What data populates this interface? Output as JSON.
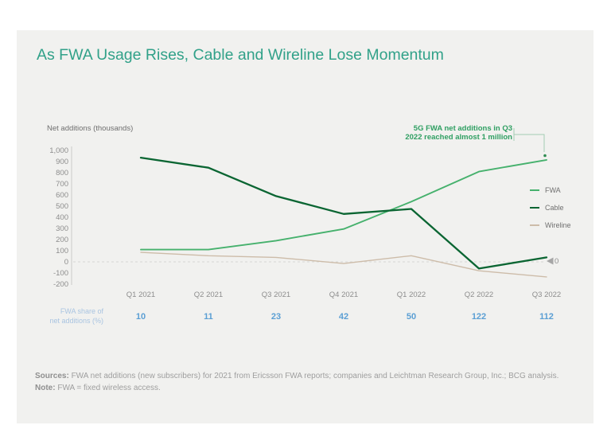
{
  "title": "As FWA Usage Rises, Cable and Wireline Lose Momentum",
  "annotation": {
    "line1": "5G FWA net additions in Q3",
    "line2": "2022 reached almost 1 million"
  },
  "zero_marker_label": "0",
  "share_row": {
    "label_line1": "FWA share of",
    "label_line2": "net additions (%)",
    "values": [
      "10",
      "11",
      "23",
      "42",
      "50",
      "122",
      "112"
    ]
  },
  "footer": {
    "sources_label": "Sources:",
    "sources_text": " FWA net additions (new subscribers) for 2021 from Ericsson FWA reports; companies and Leichtman Research Group, Inc.; BCG analysis.",
    "note_label": "Note:",
    "note_text": " FWA = fixed wireless access."
  },
  "colors": {
    "title_teal": "#31a189",
    "fwa_green": "#46b16d",
    "cable_dark_green": "#0a6532",
    "wireline_tan": "#cdbca9",
    "annotation_green": "#2f9f62",
    "connector_green": "#a3cdb3",
    "endpoint_dot_green": "#2e8b50",
    "share_value_blue": "#5b9fd4",
    "share_label_blue": "#a9c4e1",
    "axis_gray": "#8d8d8d",
    "card_background": "#f1f1ef",
    "zero_dash_gray": "#d8d8d5",
    "marker_triangle_gray": "#a6a6a6"
  },
  "chart_data": {
    "type": "line",
    "title": "As FWA Usage Rises, Cable and Wireline Lose Momentum",
    "ylabel": "Net additions (thousands)",
    "xlabel": "",
    "ylim": [
      -200,
      1000
    ],
    "ytick_labels": [
      "1,000",
      "900",
      "800",
      "700",
      "600",
      "500",
      "400",
      "300",
      "200",
      "100",
      "0",
      "-100",
      "-200"
    ],
    "grid": "zero-line-dashed-only",
    "legend_position": "right",
    "categories": [
      "Q1 2021",
      "Q2 2021",
      "Q3 2021",
      "Q4 2021",
      "Q1 2022",
      "Q2 2022",
      "Q3 2022"
    ],
    "series": [
      {
        "name": "FWA",
        "color": "#46b16d",
        "stroke_width": 1.9,
        "values": [
          110,
          110,
          190,
          295,
          540,
          810,
          915
        ]
      },
      {
        "name": "Cable",
        "color": "#0a6532",
        "stroke_width": 2.3,
        "values": [
          935,
          845,
          590,
          430,
          475,
          -60,
          40
        ]
      },
      {
        "name": "Wireline",
        "color": "#cdbca9",
        "stroke_width": 1.4,
        "values": [
          85,
          55,
          40,
          -15,
          55,
          -80,
          -135
        ]
      }
    ],
    "fwa_share_of_net_additions_pct": [
      10,
      11,
      23,
      42,
      50,
      122,
      112
    ],
    "annotation_text": "5G FWA net additions in Q3 2022 reached almost 1 million",
    "right_axis_zero_marker": "0"
  }
}
